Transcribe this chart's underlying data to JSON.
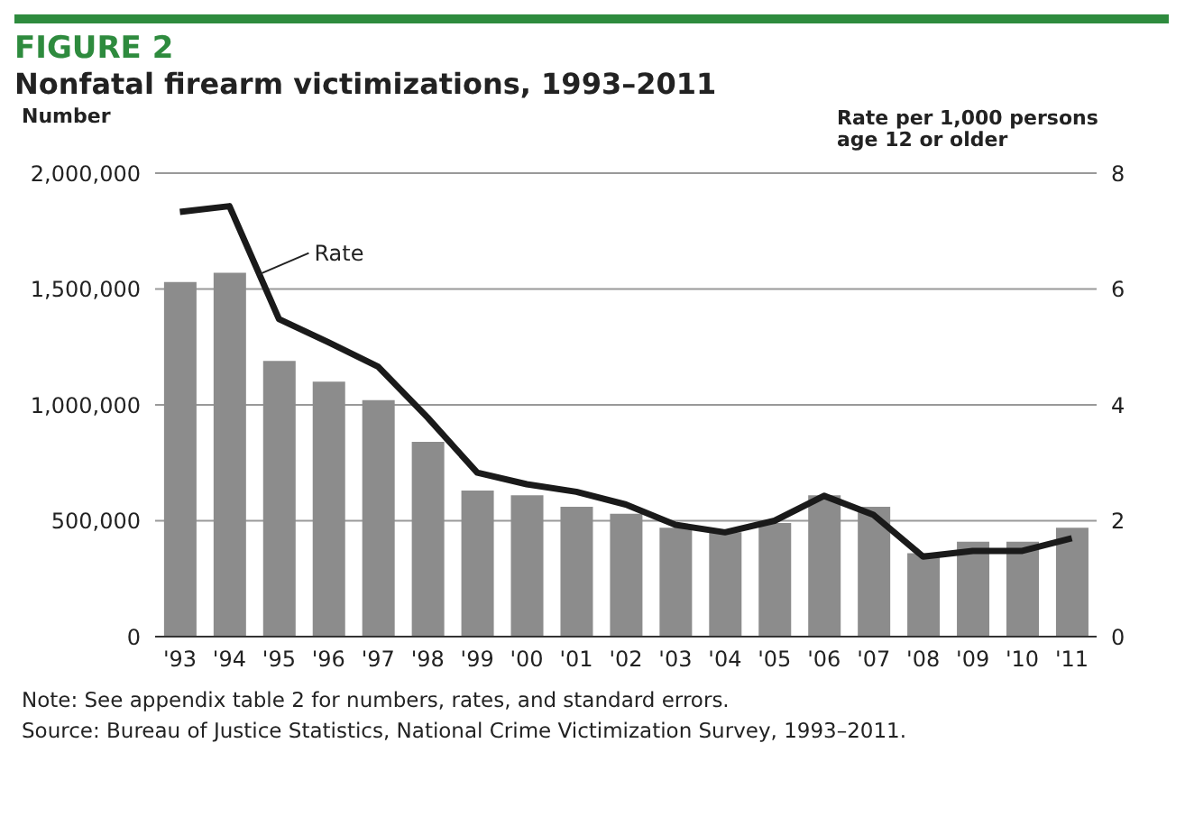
{
  "chart_data": {
    "type": "bar",
    "title": "FIGURE 2",
    "subtitle": "Nonfatal firearm victimizations, 1993–2011",
    "ylabel": "Number",
    "y2label": "Rate per 1,000 persons age 12 or older",
    "categories": [
      "'93",
      "'94",
      "'95",
      "'96",
      "'97",
      "'98",
      "'99",
      "'00",
      "'01",
      "'02",
      "'03",
      "'04",
      "'05",
      "'06",
      "'07",
      "'08",
      "'09",
      "'10",
      "'11"
    ],
    "series": [
      {
        "color": "#8c8c8c",
        "values": [
          1530000,
          1570000,
          1190000,
          1100000,
          1020000,
          840000,
          630000,
          610000,
          560000,
          530000,
          470000,
          450000,
          490000,
          610000,
          560000,
          360000,
          410000,
          410000,
          470000
        ]
      },
      {
        "type": "line",
        "name": "Rate",
        "axis": "y2",
        "color": "#1a1a1a",
        "values": [
          7.33,
          7.43,
          5.48,
          5.08,
          4.66,
          3.78,
          2.83,
          2.63,
          2.5,
          2.28,
          1.93,
          1.8,
          2.0,
          2.43,
          2.1,
          1.38,
          1.48,
          1.48,
          1.7
        ]
      }
    ],
    "ylim": [
      0,
      2000000
    ],
    "yticks": [
      0,
      {
        "value": 500000,
        "label": "500,000"
      },
      {
        "value": 1000000,
        "label": "1,000,000"
      },
      {
        "value": 1500000,
        "label": "1,500,000"
      },
      {
        "value": 2000000,
        "label": "2,000,000"
      }
    ],
    "y2lim": [
      0,
      8
    ],
    "y2ticks": [
      0,
      2,
      4,
      6,
      8
    ],
    "grid": "y",
    "legend": "top left",
    "marker": "none",
    "annotations": [
      "Note: See appendix table 2 for numbers, rates, and standard errors.",
      "Source: Bureau of Justice Statistics, National Crime Victimization Survey, 1993–2011."
    ]
  }
}
